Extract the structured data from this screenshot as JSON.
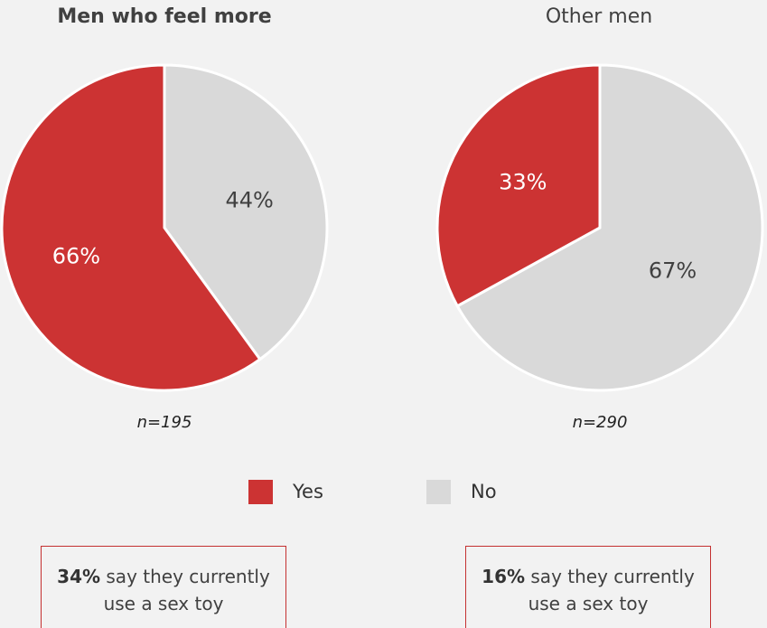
{
  "chart_data": [
    {
      "type": "pie",
      "title": "Men who feel more",
      "title_bold": true,
      "n_label": "n=195",
      "slices": [
        {
          "label": "Yes",
          "value": 66,
          "display": "66%"
        },
        {
          "label": "No",
          "value": 44,
          "display": "44%"
        }
      ]
    },
    {
      "type": "pie",
      "title": "Other men",
      "title_bold": false,
      "n_label": "n=290",
      "slices": [
        {
          "label": "Yes",
          "value": 33,
          "display": "33%"
        },
        {
          "label": "No",
          "value": 67,
          "display": "67%"
        }
      ]
    }
  ],
  "legend": {
    "placement": "bottom-center",
    "items": [
      {
        "label": "Yes",
        "color": "#cc3333"
      },
      {
        "label": "No",
        "color": "#d9d9d9"
      }
    ]
  },
  "notes": [
    {
      "bold": "34%",
      "text": " say they currently use a sex toy"
    },
    {
      "bold": "16%",
      "text": " say they currently use a sex toy"
    }
  ],
  "colors": {
    "yes": "#cc3333",
    "no": "#d9d9d9",
    "background": "#f2f2f2",
    "slice_border": "#ffffff",
    "note_border": "#c43131"
  }
}
